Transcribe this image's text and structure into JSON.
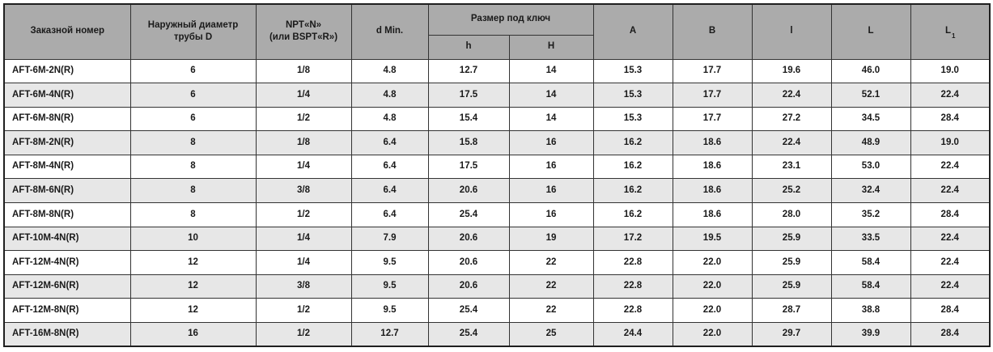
{
  "colors": {
    "header_bg": "#ababab",
    "row_alt_bg": "#e7e7e7",
    "border": "#333333",
    "text": "#1a1a1a"
  },
  "table": {
    "headers": {
      "order_number": "Заказной номер",
      "outer_diameter": "Наружный диаметр\nтрубы D",
      "thread": "NPT«N»\n(или BSPT«R»)",
      "d_min": "d Min.",
      "wrench_size_group": "Размер под ключ",
      "wrench_h": "h",
      "wrench_H": "H",
      "a": "A",
      "b": "B",
      "l_small": "l",
      "l_big": "L",
      "l1_base": "L",
      "l1_sub": "1"
    },
    "rows": [
      [
        "AFT-6M-2N(R)",
        "6",
        "1/8",
        "4.8",
        "12.7",
        "14",
        "15.3",
        "17.7",
        "19.6",
        "46.0",
        "19.0"
      ],
      [
        "AFT-6M-4N(R)",
        "6",
        "1/4",
        "4.8",
        "17.5",
        "14",
        "15.3",
        "17.7",
        "22.4",
        "52.1",
        "22.4"
      ],
      [
        "AFT-6M-8N(R)",
        "6",
        "1/2",
        "4.8",
        "15.4",
        "14",
        "15.3",
        "17.7",
        "27.2",
        "34.5",
        "28.4"
      ],
      [
        "AFT-8M-2N(R)",
        "8",
        "1/8",
        "6.4",
        "15.8",
        "16",
        "16.2",
        "18.6",
        "22.4",
        "48.9",
        "19.0"
      ],
      [
        "AFT-8M-4N(R)",
        "8",
        "1/4",
        "6.4",
        "17.5",
        "16",
        "16.2",
        "18.6",
        "23.1",
        "53.0",
        "22.4"
      ],
      [
        "AFT-8M-6N(R)",
        "8",
        "3/8",
        "6.4",
        "20.6",
        "16",
        "16.2",
        "18.6",
        "25.2",
        "32.4",
        "22.4"
      ],
      [
        "AFT-8M-8N(R)",
        "8",
        "1/2",
        "6.4",
        "25.4",
        "16",
        "16.2",
        "18.6",
        "28.0",
        "35.2",
        "28.4"
      ],
      [
        "AFT-10M-4N(R)",
        "10",
        "1/4",
        "7.9",
        "20.6",
        "19",
        "17.2",
        "19.5",
        "25.9",
        "33.5",
        "22.4"
      ],
      [
        "AFT-12M-4N(R)",
        "12",
        "1/4",
        "9.5",
        "20.6",
        "22",
        "22.8",
        "22.0",
        "25.9",
        "58.4",
        "22.4"
      ],
      [
        "AFT-12M-6N(R)",
        "12",
        "3/8",
        "9.5",
        "20.6",
        "22",
        "22.8",
        "22.0",
        "25.9",
        "58.4",
        "22.4"
      ],
      [
        "AFT-12M-8N(R)",
        "12",
        "1/2",
        "9.5",
        "25.4",
        "22",
        "22.8",
        "22.0",
        "28.7",
        "38.8",
        "28.4"
      ],
      [
        "AFT-16M-8N(R)",
        "16",
        "1/2",
        "12.7",
        "25.4",
        "25",
        "24.4",
        "22.0",
        "29.7",
        "39.9",
        "28.4"
      ]
    ]
  }
}
